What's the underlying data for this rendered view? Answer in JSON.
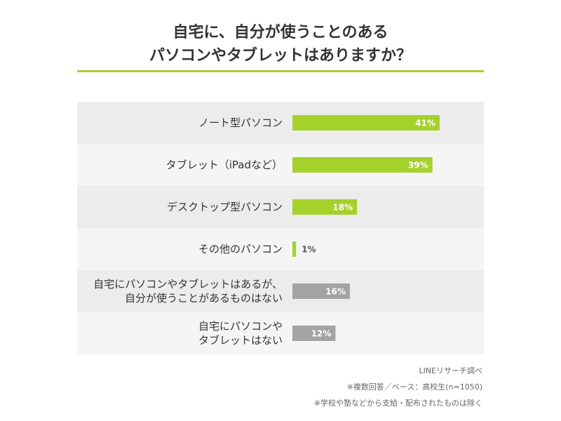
{
  "chart_data": {
    "type": "bar",
    "orientation": "horizontal",
    "title": "自宅に、自分が使うことのある\nパソコンやタブレットはありますか？",
    "categories": [
      "ノート型パソコン",
      "タブレット（iPadなど）",
      "デスクトップ型パソコン",
      "その他のパソコン",
      "自宅にパソコンやタブレットはあるが、\n自分が使うことがあるものはない",
      "自宅にパソコンや\nタブレットはない"
    ],
    "values": [
      41,
      39,
      18,
      1,
      16,
      12
    ],
    "value_labels": [
      "41%",
      "39%",
      "18%",
      "1%",
      "16%",
      "12%"
    ],
    "colors": [
      "#a5d12b",
      "#a5d12b",
      "#a5d12b",
      "#a5d12b",
      "#a3a3a3",
      "#a3a3a3"
    ],
    "notes": [
      "LINEリサーチ調べ",
      "※複数回答／ベース：高校生(n=1050)",
      "※学校や塾などから支給・配布されたものは除く"
    ]
  }
}
